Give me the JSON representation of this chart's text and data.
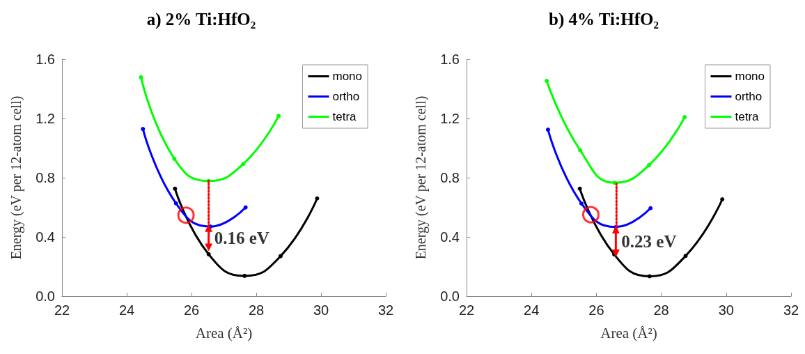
{
  "chart_data": [
    {
      "type": "line",
      "title": "a) 2% Ti:HfO₂",
      "xlabel": "Area (Å²)",
      "ylabel": "Energy (eV per 12-atom cell)",
      "xlim": [
        22,
        32
      ],
      "xticks": [
        22,
        24,
        26,
        28,
        30,
        32
      ],
      "ylim": [
        0,
        1.6
      ],
      "yticks": [
        {
          "value": 0,
          "label": "0.0"
        },
        {
          "value": 0.4,
          "label": "0.4"
        },
        {
          "value": 0.8,
          "label": "0.8"
        },
        {
          "value": 1.2,
          "label": "1.2"
        },
        {
          "value": 1.6,
          "label": "1.6"
        }
      ],
      "grid": false,
      "legend": "top right",
      "marker": "circle",
      "line_style": "solid",
      "series": [
        {
          "name": "mono",
          "color": "#000000",
          "x": [
            25.49,
            26.53,
            27.64,
            28.75,
            29.88
          ],
          "values": [
            0.726,
            0.283,
            0.137,
            0.27,
            0.66
          ]
        },
        {
          "name": "ortho",
          "color": "#0000ff",
          "x": [
            24.5,
            25.52,
            26.58,
            27.67
          ],
          "values": [
            1.129,
            0.627,
            0.47,
            0.599
          ]
        },
        {
          "name": "tetra",
          "color": "#00ff00",
          "x": [
            24.44,
            25.47,
            26.52,
            27.6,
            28.69
          ],
          "values": [
            1.478,
            0.928,
            0.778,
            0.893,
            1.217
          ]
        },
        {
          "type": "line",
          "color": "#ff0000",
          "line_style": "dotted",
          "marker": "none",
          "x": [
            26.53,
            26.53
          ],
          "values": [
            0.47,
            0.78
          ]
        },
        {
          "type": "line",
          "color": "#ff0000",
          "marker": "triangle",
          "x": [
            26.53,
            26.53
          ],
          "values": [
            0.33,
            0.46
          ]
        },
        {
          "type": "scatter",
          "color": "#ff0000",
          "x": [
            25.83
          ],
          "values": [
            0.547
          ]
        }
      ],
      "annotations": [
        "0.16 eV"
      ]
    },
    {
      "type": "line",
      "title": "b) 4% Ti:HfO₂",
      "xlabel": "Area (Å²)",
      "ylabel": "Energy (eV per 12-atom cell)",
      "xlim": [
        22,
        32
      ],
      "xticks": [
        22,
        24,
        26,
        28,
        30,
        32
      ],
      "ylim": [
        0,
        1.6
      ],
      "yticks": [
        {
          "value": 0,
          "label": "0.0"
        },
        {
          "value": 0.4,
          "label": "0.4"
        },
        {
          "value": 0.8,
          "label": "0.8"
        },
        {
          "value": 1.2,
          "label": "1.2"
        },
        {
          "value": 1.6,
          "label": "1.6"
        }
      ],
      "grid": false,
      "legend": "top right",
      "marker": "circle",
      "line_style": "solid",
      "series": [
        {
          "name": "mono",
          "color": "#000000",
          "x": [
            25.49,
            26.55,
            27.64,
            28.75,
            29.88
          ],
          "values": [
            0.726,
            0.282,
            0.134,
            0.272,
            0.654
          ]
        },
        {
          "name": "ortho",
          "color": "#0000ff",
          "x": [
            24.51,
            25.54,
            26.6,
            27.67
          ],
          "values": [
            1.124,
            0.626,
            0.467,
            0.594
          ]
        },
        {
          "name": "tetra",
          "color": "#00ff00",
          "x": [
            24.47,
            25.5,
            26.56,
            27.62,
            28.72
          ],
          "values": [
            1.454,
            0.986,
            0.766,
            0.884,
            1.209
          ]
        },
        {
          "type": "line",
          "color": "#ff0000",
          "line_style": "dotted",
          "marker": "none",
          "x": [
            26.62,
            26.62
          ],
          "values": [
            0.47,
            0.76
          ]
        },
        {
          "type": "line",
          "color": "#ff0000",
          "marker": "triangle",
          "x": [
            26.6,
            26.6
          ],
          "values": [
            0.29,
            0.45
          ]
        },
        {
          "type": "scatter",
          "color": "#ff0000",
          "x": [
            25.83
          ],
          "values": [
            0.55
          ]
        }
      ],
      "annotations": [
        "0.23 eV"
      ]
    }
  ]
}
